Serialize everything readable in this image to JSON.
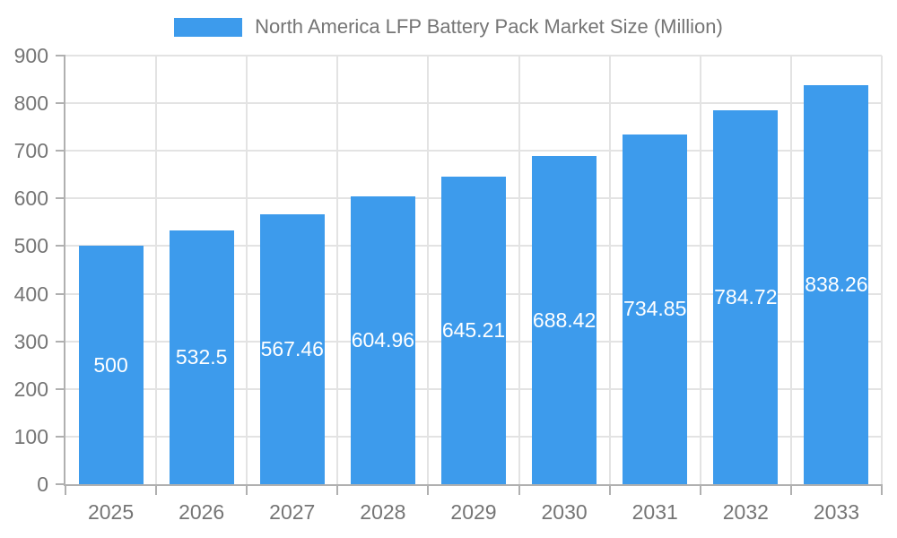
{
  "chart_data": {
    "type": "bar",
    "title": "North America LFP Battery Pack Market Size (Million)",
    "categories": [
      "2025",
      "2026",
      "2027",
      "2028",
      "2029",
      "2030",
      "2031",
      "2032",
      "2033"
    ],
    "values": [
      500,
      532.5,
      567.46,
      604.96,
      645.21,
      688.42,
      734.85,
      784.72,
      838.26
    ],
    "value_labels": [
      "500",
      "532.5",
      "567.46",
      "604.96",
      "645.21",
      "688.42",
      "734.85",
      "784.72",
      "838.26"
    ],
    "ylim": [
      0,
      900
    ],
    "ytick_step": 100,
    "ytick_labels": [
      "0",
      "100",
      "200",
      "300",
      "400",
      "500",
      "600",
      "700",
      "800",
      "900"
    ],
    "grid": true,
    "legend_position": "top-center",
    "colors": {
      "bar": "#3D9BEC",
      "grid": "#e3e3e3",
      "axis_line": "#b0b0b0",
      "axis_text": "#757575",
      "bar_label": "#ffffff"
    }
  }
}
